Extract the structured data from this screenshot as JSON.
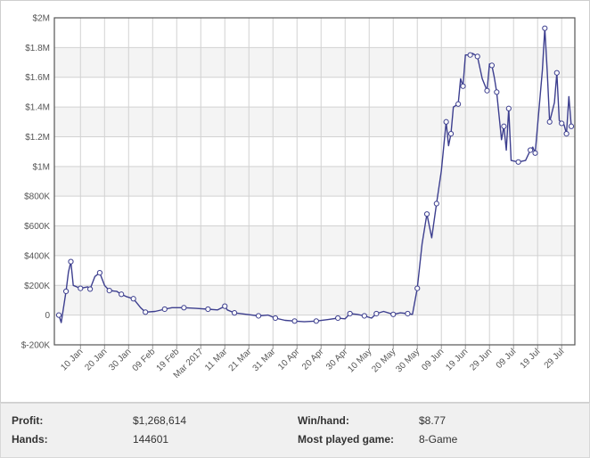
{
  "chart_data": {
    "type": "line",
    "title": "",
    "xlabel": "",
    "ylabel": "",
    "ylim": [
      -200000,
      2000000
    ],
    "grid": true,
    "y_ticks": [
      "$2M",
      "$1.8M",
      "$1.6M",
      "$1.4M",
      "$1.2M",
      "$1M",
      "$800K",
      "$600K",
      "$400K",
      "$200K",
      "0",
      "$-200K"
    ],
    "y_tick_values": [
      2000000,
      1800000,
      1600000,
      1400000,
      1200000,
      1000000,
      800000,
      600000,
      400000,
      200000,
      0,
      -200000
    ],
    "x_ticks": [
      "10 Jan",
      "20 Jan",
      "30 Jan",
      "09 Feb",
      "19 Feb",
      "Mar 2017",
      "11 Mar",
      "21 Mar",
      "31 Mar",
      "10 Apr",
      "20 Apr",
      "30 Apr",
      "10 May",
      "20 May",
      "30 May",
      "09 Jun",
      "19 Jun",
      "29 Jun",
      "09 Jul",
      "19 Jul",
      "29 Jul"
    ],
    "series": [
      {
        "color": "#3d3f8f",
        "points": [
          [
            "01 Jan",
            0
          ],
          [
            "02 Jan",
            -50000
          ],
          [
            "04 Jan",
            160000
          ],
          [
            "05 Jan",
            290000
          ],
          [
            "06 Jan",
            360000
          ],
          [
            "07 Jan",
            200000
          ],
          [
            "10 Jan",
            180000
          ],
          [
            "13 Jan",
            190000
          ],
          [
            "14 Jan",
            175000
          ],
          [
            "16 Jan",
            260000
          ],
          [
            "18 Jan",
            285000
          ],
          [
            "20 Jan",
            200000
          ],
          [
            "22 Jan",
            165000
          ],
          [
            "25 Jan",
            160000
          ],
          [
            "27 Jan",
            140000
          ],
          [
            "29 Jan",
            125000
          ],
          [
            "01 Feb",
            110000
          ],
          [
            "04 Feb",
            50000
          ],
          [
            "06 Feb",
            20000
          ],
          [
            "10 Feb",
            25000
          ],
          [
            "14 Feb",
            40000
          ],
          [
            "17 Feb",
            50000
          ],
          [
            "22 Feb",
            50000
          ],
          [
            "27 Feb",
            45000
          ],
          [
            "04 Mar",
            40000
          ],
          [
            "08 Mar",
            35000
          ],
          [
            "11 Mar",
            60000
          ],
          [
            "12 Mar",
            35000
          ],
          [
            "15 Mar",
            15000
          ],
          [
            "20 Mar",
            5000
          ],
          [
            "25 Mar",
            -5000
          ],
          [
            "29 Mar",
            0
          ],
          [
            "01 Apr",
            -20000
          ],
          [
            "05 Apr",
            -35000
          ],
          [
            "09 Apr",
            -40000
          ],
          [
            "13 Apr",
            -45000
          ],
          [
            "18 Apr",
            -40000
          ],
          [
            "23 Apr",
            -30000
          ],
          [
            "27 Apr",
            -20000
          ],
          [
            "30 Apr",
            -25000
          ],
          [
            "02 May",
            10000
          ],
          [
            "05 May",
            5000
          ],
          [
            "08 May",
            -5000
          ],
          [
            "11 May",
            -20000
          ],
          [
            "13 May",
            10000
          ],
          [
            "16 May",
            25000
          ],
          [
            "20 May",
            5000
          ],
          [
            "23 May",
            15000
          ],
          [
            "26 May",
            10000
          ],
          [
            "28 May",
            5000
          ],
          [
            "30 May",
            180000
          ],
          [
            "01 Jun",
            480000
          ],
          [
            "03 Jun",
            680000
          ],
          [
            "05 Jun",
            520000
          ],
          [
            "07 Jun",
            750000
          ],
          [
            "09 Jun",
            970000
          ],
          [
            "11 Jun",
            1300000
          ],
          [
            "12 Jun",
            1140000
          ],
          [
            "13 Jun",
            1220000
          ],
          [
            "14 Jun",
            1400000
          ],
          [
            "16 Jun",
            1420000
          ],
          [
            "17 Jun",
            1590000
          ],
          [
            "18 Jun",
            1540000
          ],
          [
            "19 Jun",
            1750000
          ],
          [
            "21 Jun",
            1750000
          ],
          [
            "22 Jun",
            1760000
          ],
          [
            "24 Jun",
            1740000
          ],
          [
            "26 Jun",
            1590000
          ],
          [
            "28 Jun",
            1510000
          ],
          [
            "29 Jun",
            1690000
          ],
          [
            "30 Jun",
            1680000
          ],
          [
            "01 Jul",
            1600000
          ],
          [
            "02 Jul",
            1500000
          ],
          [
            "04 Jul",
            1180000
          ],
          [
            "05 Jul",
            1270000
          ],
          [
            "06 Jul",
            1110000
          ],
          [
            "07 Jul",
            1390000
          ],
          [
            "08 Jul",
            1040000
          ],
          [
            "11 Jul",
            1030000
          ],
          [
            "14 Jul",
            1040000
          ],
          [
            "16 Jul",
            1110000
          ],
          [
            "17 Jul",
            1130000
          ],
          [
            "18 Jul",
            1090000
          ],
          [
            "21 Jul",
            1650000
          ],
          [
            "22 Jul",
            1930000
          ],
          [
            "23 Jul",
            1640000
          ],
          [
            "24 Jul",
            1300000
          ],
          [
            "26 Jul",
            1430000
          ],
          [
            "27 Jul",
            1630000
          ],
          [
            "28 Jul",
            1310000
          ],
          [
            "29 Jul",
            1290000
          ],
          [
            "30 Jul",
            1280000
          ],
          [
            "31 Jul",
            1220000
          ],
          [
            "01 Aug",
            1470000
          ],
          [
            "02 Aug",
            1270000
          ]
        ]
      }
    ]
  },
  "stats": {
    "profit_label": "Profit:",
    "profit_value": "$1,268,614",
    "hands_label": "Hands:",
    "hands_value": "144601",
    "winhand_label": "Win/hand:",
    "winhand_value": "$8.77",
    "mostplayed_label": "Most played game:",
    "mostplayed_value": "8-Game"
  }
}
